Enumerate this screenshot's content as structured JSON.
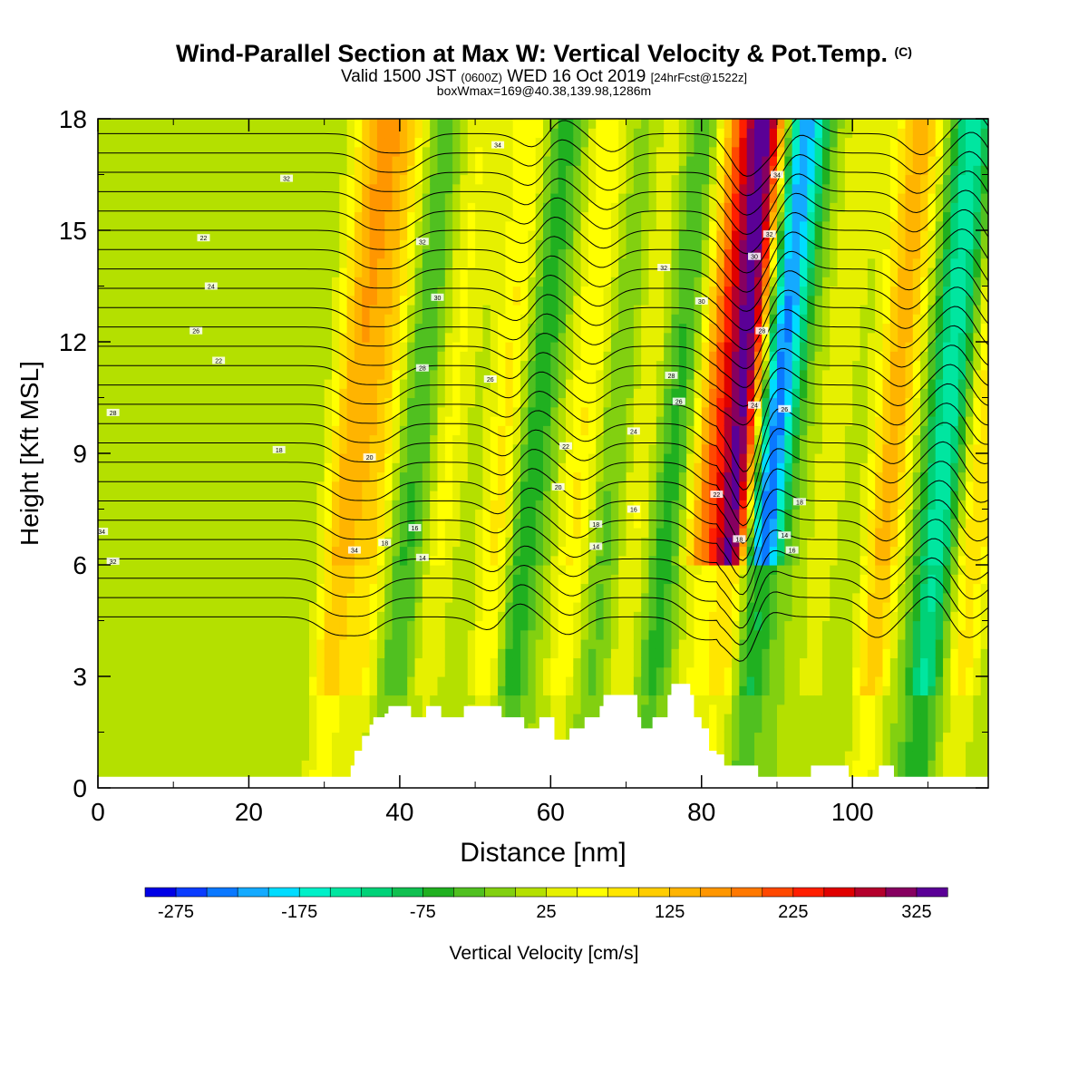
{
  "header": {
    "title": "Wind-Parallel Section at Max W: Vertical Velocity & Pot.Temp.",
    "copyright_mark": "(C)",
    "valid_prefix": "Valid 1500 JST",
    "valid_utc": "(0600Z)",
    "valid_date": "WED 16 Oct 2019",
    "forecast": "[24hrFcst@1522z]",
    "box_info": "boxWmax=169@40.38,139.98,1286m"
  },
  "chart_data": {
    "type": "heatmap",
    "title": "Wind-Parallel Section at Max W: Vertical Velocity & Pot.Temp.",
    "xlabel": "Distance [nm]",
    "ylabel": "Height [Kft MSL]",
    "xlim": [
      0,
      118
    ],
    "ylim": [
      0,
      18
    ],
    "x_ticks": [
      0,
      20,
      40,
      60,
      80,
      100
    ],
    "y_ticks": [
      0,
      3,
      6,
      9,
      12,
      15,
      18
    ],
    "colorbar": {
      "label": "Vertical Velocity [cm/s]",
      "ticks": [
        -275,
        -175,
        -75,
        25,
        125,
        225,
        325
      ],
      "min": -300,
      "max": 350,
      "step": 25,
      "colors": [
        "#0000e6",
        "#0a3cff",
        "#0a78ff",
        "#14aaff",
        "#00dcff",
        "#00f0c8",
        "#00e6a0",
        "#00d278",
        "#10c050",
        "#20b020",
        "#50c020",
        "#82d010",
        "#b4e000",
        "#e6f000",
        "#ffff00",
        "#ffe600",
        "#ffcd00",
        "#ffb400",
        "#ff9600",
        "#ff7800",
        "#ff4800",
        "#ff1e00",
        "#e00000",
        "#b4002c",
        "#860060",
        "#5a0096"
      ]
    },
    "contour_variable": "Potential Temperature",
    "contour_labels": [
      "34",
      "32",
      "30",
      "28",
      "26",
      "24",
      "22",
      "20",
      "18",
      "16",
      "14"
    ],
    "terrain_profile": [
      [
        0,
        0.3
      ],
      [
        33,
        0.3
      ],
      [
        33.5,
        0.6
      ],
      [
        34,
        1.0
      ],
      [
        35,
        1.4
      ],
      [
        36,
        1.7
      ],
      [
        36.5,
        1.9
      ],
      [
        38,
        2.0
      ],
      [
        38.5,
        2.2
      ],
      [
        41,
        2.2
      ],
      [
        41.5,
        1.9
      ],
      [
        43,
        1.9
      ],
      [
        43.5,
        2.2
      ],
      [
        45,
        2.2
      ],
      [
        45.5,
        1.9
      ],
      [
        48,
        1.9
      ],
      [
        48.5,
        2.2
      ],
      [
        53,
        2.2
      ],
      [
        53.5,
        1.9
      ],
      [
        56,
        1.9
      ],
      [
        56.5,
        1.6
      ],
      [
        58,
        1.6
      ],
      [
        58.5,
        1.9
      ],
      [
        60,
        1.9
      ],
      [
        60.5,
        1.3
      ],
      [
        62,
        1.3
      ],
      [
        62.5,
        1.6
      ],
      [
        64,
        1.6
      ],
      [
        64.5,
        1.9
      ],
      [
        66,
        1.9
      ],
      [
        66.5,
        2.2
      ],
      [
        67,
        2.5
      ],
      [
        71,
        2.5
      ],
      [
        71.5,
        1.9
      ],
      [
        72,
        1.6
      ],
      [
        73,
        1.6
      ],
      [
        73.5,
        1.9
      ],
      [
        75,
        1.9
      ],
      [
        75.5,
        2.5
      ],
      [
        76,
        2.8
      ],
      [
        78,
        2.8
      ],
      [
        78.5,
        2.5
      ],
      [
        79,
        1.9
      ],
      [
        80,
        1.6
      ],
      [
        81,
        1.0
      ],
      [
        82,
        0.9
      ],
      [
        83,
        0.6
      ],
      [
        87,
        0.6
      ],
      [
        87.5,
        0.3
      ],
      [
        94,
        0.3
      ],
      [
        94.5,
        0.6
      ],
      [
        99,
        0.6
      ],
      [
        99.5,
        0.3
      ],
      [
        103,
        0.3
      ],
      [
        103.5,
        0.6
      ],
      [
        105,
        0.6
      ],
      [
        105.5,
        0.3
      ],
      [
        118,
        0.3
      ]
    ],
    "velocity_bands": [
      {
        "x": 31,
        "value": 130
      },
      {
        "x": 35,
        "value": 100
      },
      {
        "x": 40,
        "value": -60
      },
      {
        "x": 44,
        "value": 60
      },
      {
        "x": 52,
        "value": 100
      },
      {
        "x": 55,
        "value": -90
      },
      {
        "x": 62,
        "value": 80
      },
      {
        "x": 66,
        "value": -40
      },
      {
        "x": 70,
        "value": 60
      },
      {
        "x": 74,
        "value": -70
      },
      {
        "x": 79,
        "value": 160
      },
      {
        "x": 83,
        "value": 330
      },
      {
        "x": 87,
        "value": -270
      },
      {
        "x": 95,
        "value": 40
      },
      {
        "x": 103,
        "value": 140
      },
      {
        "x": 110,
        "value": -150
      },
      {
        "x": 115,
        "value": 100
      }
    ]
  }
}
